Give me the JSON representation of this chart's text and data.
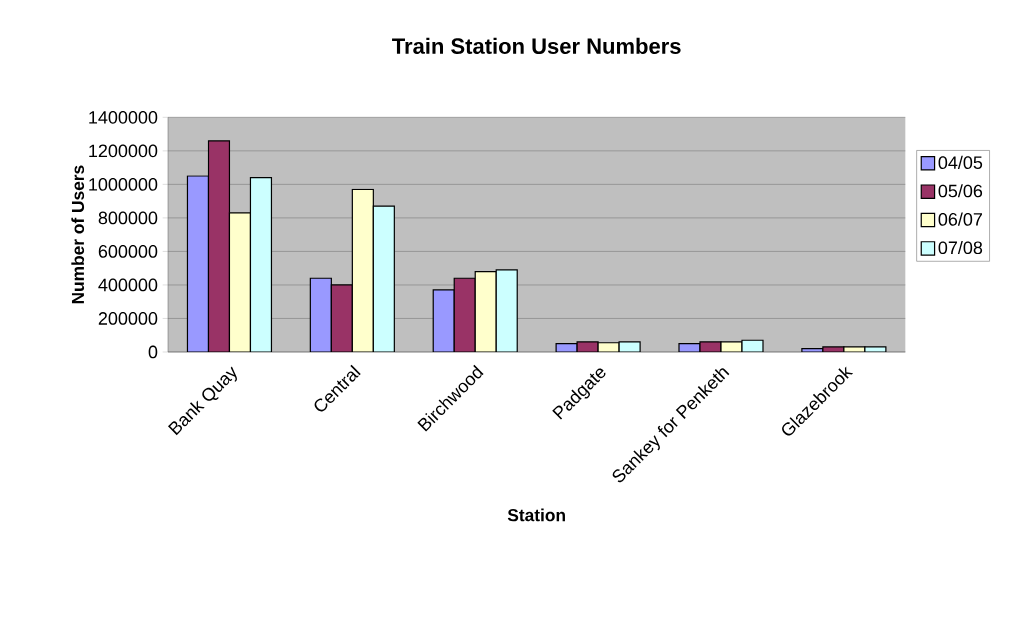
{
  "chart_data": {
    "type": "bar",
    "title": "Train Station User Numbers",
    "xlabel": "Station",
    "ylabel": "Number of Users",
    "categories": [
      "Bank Quay",
      "Central",
      "Birchwood",
      "Padgate",
      "Sankey for Penketh",
      "Glazebrook"
    ],
    "series": [
      {
        "name": "04/05",
        "color": "#9999ff",
        "values": [
          1050000,
          440000,
          370000,
          50000,
          50000,
          20000
        ]
      },
      {
        "name": "05/06",
        "color": "#993366",
        "values": [
          1260000,
          400000,
          440000,
          60000,
          60000,
          30000
        ]
      },
      {
        "name": "06/07",
        "color": "#ffffcc",
        "values": [
          830000,
          970000,
          480000,
          55000,
          60000,
          30000
        ]
      },
      {
        "name": "07/08",
        "color": "#ccffff",
        "values": [
          1040000,
          870000,
          490000,
          60000,
          70000,
          30000
        ]
      }
    ],
    "ylim": [
      0,
      1400000
    ],
    "yticks": [
      0,
      200000,
      400000,
      600000,
      800000,
      1000000,
      1200000,
      1400000
    ],
    "grid": "y",
    "legend": "right"
  }
}
